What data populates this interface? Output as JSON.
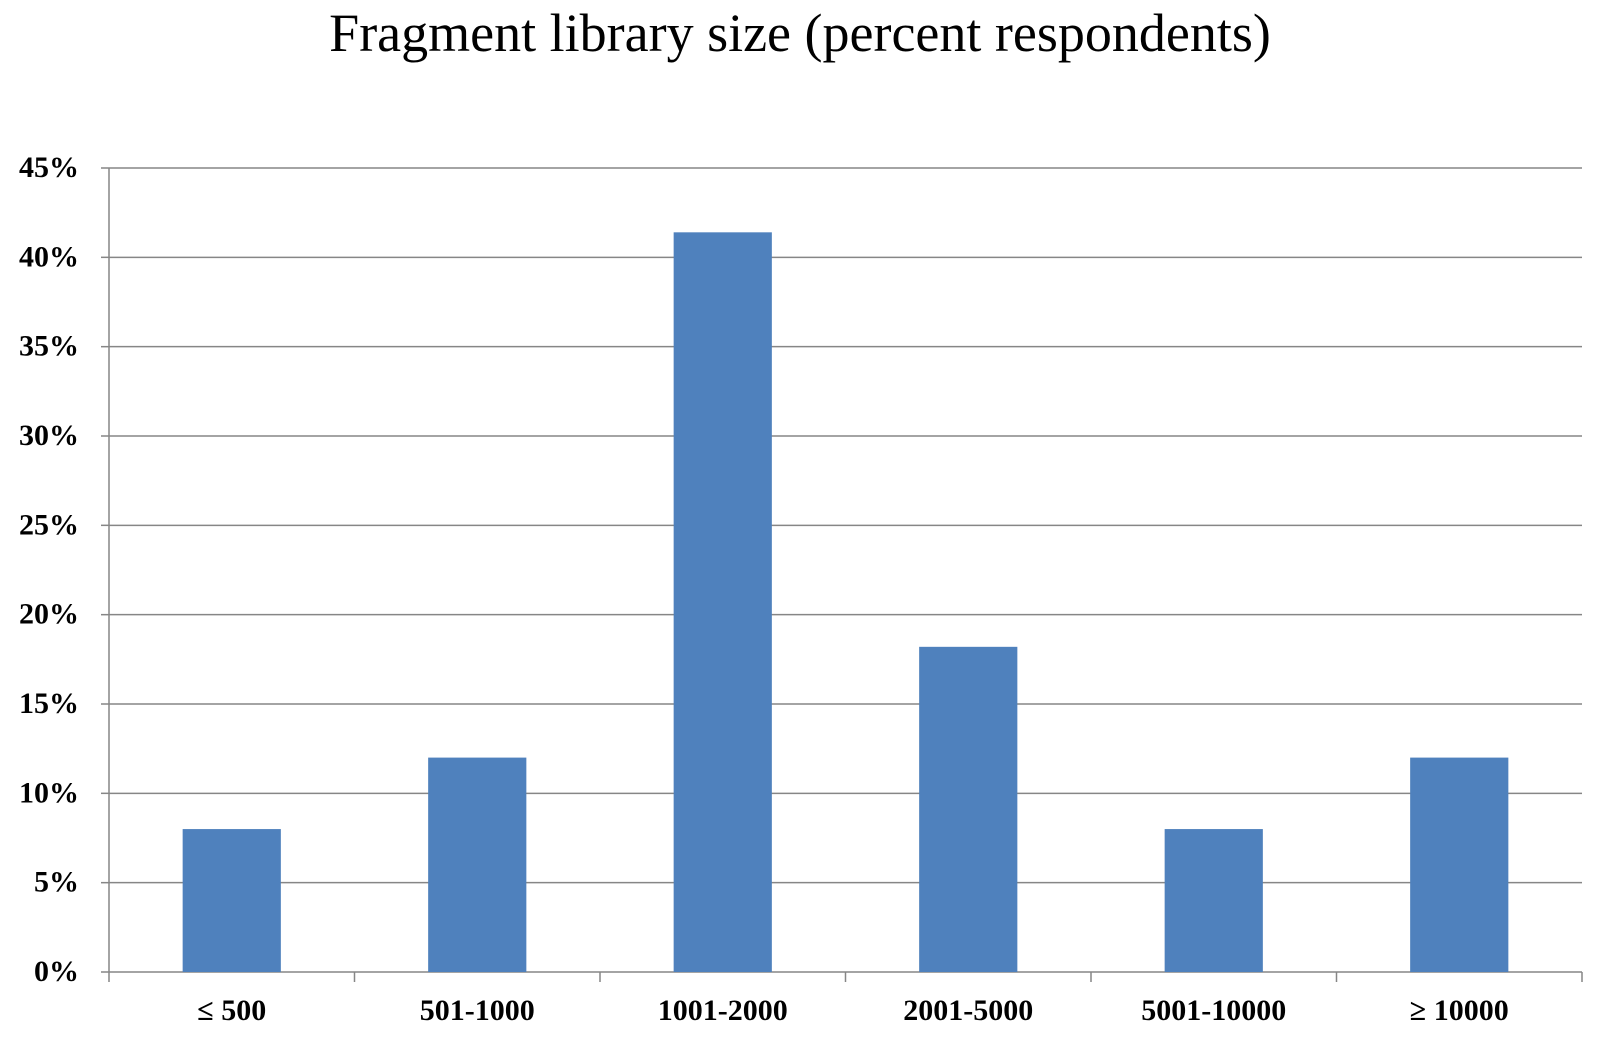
{
  "chart_data": {
    "type": "bar",
    "title": "Fragment library size (percent respondents)",
    "xlabel": "",
    "ylabel": "",
    "categories": [
      "≤ 500",
      "501-1000",
      "1001-2000",
      "2001-5000",
      "5001-10000",
      "≥ 10000"
    ],
    "values": [
      8,
      12,
      41.4,
      18.2,
      8,
      12
    ],
    "ylim": [
      0,
      45
    ],
    "yticks": [
      0,
      5,
      10,
      15,
      20,
      25,
      30,
      35,
      40,
      45
    ],
    "ytick_labels": [
      "0%",
      "5%",
      "10%",
      "15%",
      "20%",
      "25%",
      "30%",
      "35%",
      "40%",
      "45%"
    ],
    "grid": true,
    "legend": "none",
    "bar_color": "#4F81BD",
    "grid_color": "#868686"
  }
}
